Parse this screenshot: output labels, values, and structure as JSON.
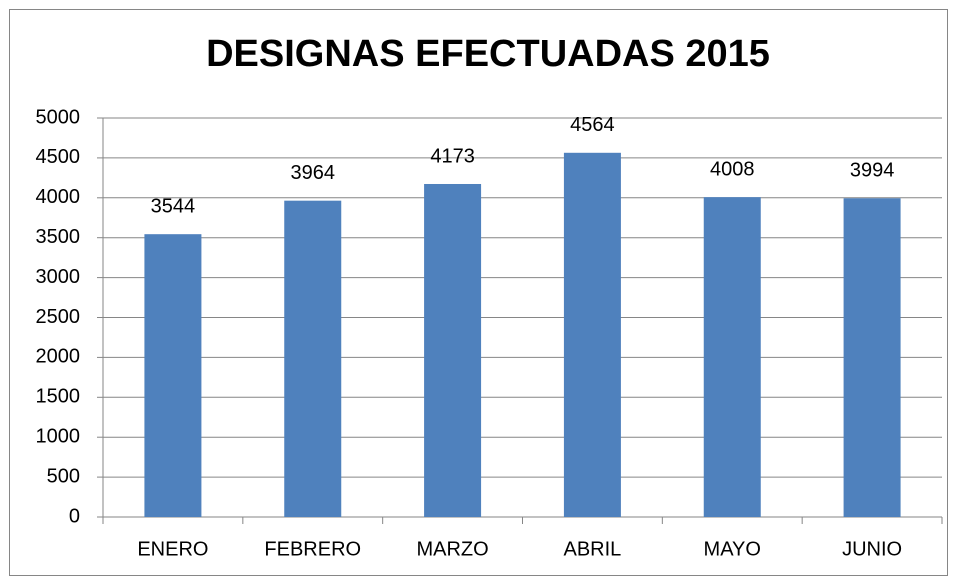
{
  "chart_data": {
    "type": "bar",
    "title": "DESIGNAS EFECTUADAS 2015",
    "categories": [
      "ENERO",
      "FEBRERO",
      "MARZO",
      "ABRIL",
      "MAYO",
      "JUNIO"
    ],
    "values": [
      3544,
      3964,
      4173,
      4564,
      4008,
      3994
    ],
    "color": "#4f81bd",
    "ylim": [
      0,
      5000
    ],
    "yticks": [
      0,
      500,
      1000,
      1500,
      2000,
      2500,
      3000,
      3500,
      4000,
      4500,
      5000
    ],
    "grid": true,
    "data_labels": true
  }
}
